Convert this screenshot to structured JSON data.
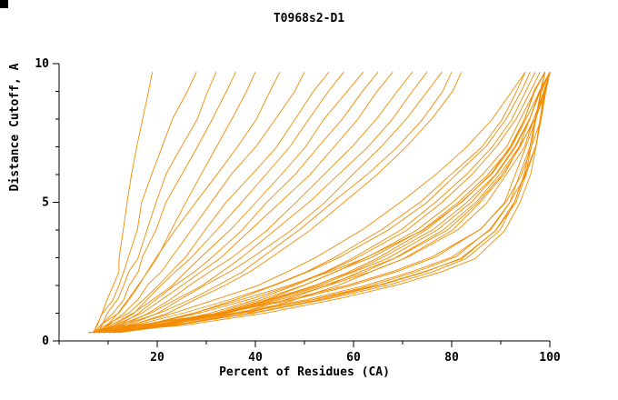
{
  "chart_data": {
    "type": "line",
    "title": "T0968s2-D1",
    "xlabel": "Percent of Residues (CA)",
    "ylabel": "Distance Cutoff, A",
    "xlim": [
      0,
      100
    ],
    "ylim": [
      0,
      10
    ],
    "x_ticks_major": [
      20,
      40,
      60,
      80,
      100
    ],
    "x_ticks_minor": [
      0,
      10,
      30,
      50,
      70,
      90
    ],
    "y_ticks_major": [
      0,
      5,
      10
    ],
    "y_ticks_minor": [
      1,
      2,
      3,
      4,
      6,
      7,
      8,
      9
    ],
    "grid": false,
    "legend": "none",
    "line_color": "#f28c00",
    "axis_color": "#000000",
    "y_values": [
      0.3,
      0.6,
      1,
      1.5,
      2,
      2.5,
      3,
      4,
      5,
      6,
      7,
      8,
      9,
      9.7
    ],
    "series": [
      {
        "x": [
          7,
          8,
          9,
          10,
          11,
          12,
          12,
          13,
          14,
          15,
          16,
          17,
          18,
          19
        ]
      },
      {
        "x": [
          7,
          8,
          9,
          11,
          12,
          13,
          14,
          16,
          17,
          19,
          21,
          23,
          26,
          28
        ]
      },
      {
        "x": [
          8,
          9,
          10,
          12,
          13,
          14,
          16,
          18,
          20,
          22,
          25,
          28,
          30,
          32
        ]
      },
      {
        "x": [
          7,
          9,
          11,
          13,
          14,
          16,
          17,
          20,
          22,
          25,
          28,
          31,
          34,
          36
        ]
      },
      {
        "x": [
          8,
          10,
          12,
          14,
          16,
          18,
          20,
          23,
          26,
          29,
          32,
          35,
          38,
          40
        ]
      },
      {
        "x": [
          7,
          9,
          12,
          14,
          16,
          18,
          20,
          24,
          28,
          32,
          36,
          40,
          43,
          45
        ]
      },
      {
        "x": [
          8,
          10,
          13,
          16,
          18,
          21,
          23,
          27,
          31,
          35,
          40,
          44,
          48,
          50
        ]
      },
      {
        "x": [
          7,
          10,
          14,
          17,
          20,
          23,
          26,
          30,
          34,
          39,
          44,
          48,
          52,
          55
        ]
      },
      {
        "x": [
          8,
          11,
          15,
          18,
          21,
          24,
          27,
          32,
          37,
          42,
          47,
          51,
          55,
          58
        ]
      },
      {
        "x": [
          7,
          11,
          15,
          19,
          23,
          26,
          29,
          35,
          40,
          45,
          50,
          54,
          59,
          62
        ]
      },
      {
        "x": [
          8,
          12,
          16,
          20,
          24,
          28,
          31,
          37,
          42,
          48,
          53,
          58,
          62,
          65
        ]
      },
      {
        "x": [
          7,
          12,
          17,
          21,
          25,
          29,
          33,
          39,
          45,
          51,
          56,
          61,
          65,
          68
        ]
      },
      {
        "x": [
          8,
          13,
          18,
          23,
          27,
          31,
          35,
          42,
          48,
          54,
          60,
          65,
          69,
          72
        ]
      },
      {
        "x": [
          7,
          13,
          19,
          24,
          29,
          33,
          37,
          44,
          51,
          57,
          63,
          68,
          72,
          75
        ]
      },
      {
        "x": [
          8,
          14,
          20,
          25,
          30,
          35,
          39,
          47,
          54,
          60,
          66,
          71,
          75,
          78
        ]
      },
      {
        "x": [
          7,
          14,
          21,
          27,
          32,
          37,
          41,
          49,
          56,
          63,
          69,
          74,
          78,
          80
        ]
      },
      {
        "x": [
          8,
          15,
          22,
          28,
          34,
          39,
          43,
          51,
          58,
          65,
          71,
          76,
          80,
          82
        ]
      },
      {
        "x": [
          8,
          16,
          24,
          32,
          40,
          46,
          52,
          62,
          70,
          77,
          83,
          88,
          92,
          95
        ]
      },
      {
        "x": [
          9,
          18,
          27,
          36,
          44,
          51,
          57,
          67,
          75,
          81,
          87,
          91,
          94,
          96
        ]
      },
      {
        "x": [
          8,
          17,
          26,
          35,
          43,
          50,
          56,
          66,
          74,
          80,
          86,
          90,
          93,
          95
        ]
      },
      {
        "x": [
          10,
          20,
          30,
          40,
          48,
          55,
          61,
          71,
          78,
          84,
          89,
          93,
          96,
          98
        ]
      },
      {
        "x": [
          9,
          19,
          29,
          39,
          47,
          54,
          60,
          70,
          77,
          83,
          88,
          92,
          95,
          97
        ]
      },
      {
        "x": [
          10,
          21,
          32,
          42,
          50,
          57,
          63,
          73,
          80,
          86,
          91,
          94,
          97,
          99
        ]
      },
      {
        "x": [
          11,
          22,
          33,
          43,
          52,
          59,
          65,
          75,
          82,
          88,
          92,
          95,
          98,
          100
        ]
      },
      {
        "x": [
          9,
          20,
          31,
          41,
          50,
          57,
          64,
          74,
          81,
          87,
          92,
          95,
          97,
          99
        ]
      },
      {
        "x": [
          10,
          22,
          34,
          44,
          53,
          60,
          67,
          77,
          84,
          89,
          93,
          96,
          98,
          100
        ]
      },
      {
        "x": [
          11,
          24,
          36,
          46,
          55,
          62,
          69,
          79,
          85,
          90,
          94,
          97,
          99,
          100
        ]
      },
      {
        "x": [
          8,
          18,
          28,
          38,
          47,
          55,
          62,
          74,
          82,
          88,
          92,
          95,
          97,
          99
        ]
      },
      {
        "x": [
          12,
          25,
          38,
          48,
          57,
          64,
          71,
          81,
          87,
          91,
          95,
          97,
          99,
          100
        ]
      },
      {
        "x": [
          10,
          23,
          35,
          45,
          54,
          62,
          68,
          78,
          85,
          90,
          94,
          96,
          98,
          100
        ]
      },
      {
        "x": [
          9,
          21,
          33,
          43,
          52,
          60,
          66,
          76,
          83,
          89,
          93,
          96,
          98,
          99
        ]
      },
      {
        "x": [
          11,
          23,
          35,
          46,
          55,
          63,
          70,
          80,
          86,
          91,
          94,
          97,
          99,
          100
        ]
      },
      {
        "x": [
          6,
          20,
          35,
          50,
          62,
          72,
          80,
          88,
          92,
          94,
          96,
          97,
          98,
          99
        ]
      },
      {
        "x": [
          7,
          22,
          38,
          53,
          65,
          74,
          82,
          89,
          93,
          95,
          96,
          97,
          98,
          100
        ]
      },
      {
        "x": [
          6,
          18,
          32,
          46,
          58,
          68,
          76,
          86,
          91,
          93,
          95,
          97,
          98,
          99
        ]
      },
      {
        "x": [
          7,
          24,
          40,
          55,
          67,
          76,
          83,
          90,
          93,
          95,
          97,
          98,
          99,
          100
        ]
      },
      {
        "x": [
          6,
          21,
          36,
          51,
          63,
          73,
          81,
          88,
          92,
          95,
          96,
          98,
          99,
          100
        ]
      },
      {
        "x": [
          8,
          26,
          42,
          57,
          69,
          78,
          85,
          91,
          94,
          96,
          97,
          98,
          99,
          100
        ]
      },
      {
        "x": [
          6,
          19,
          33,
          47,
          59,
          69,
          77,
          86,
          91,
          94,
          96,
          97,
          99,
          100
        ]
      },
      {
        "x": [
          7,
          23,
          39,
          54,
          66,
          75,
          82,
          89,
          93,
          95,
          97,
          98,
          99,
          100
        ]
      }
    ]
  }
}
